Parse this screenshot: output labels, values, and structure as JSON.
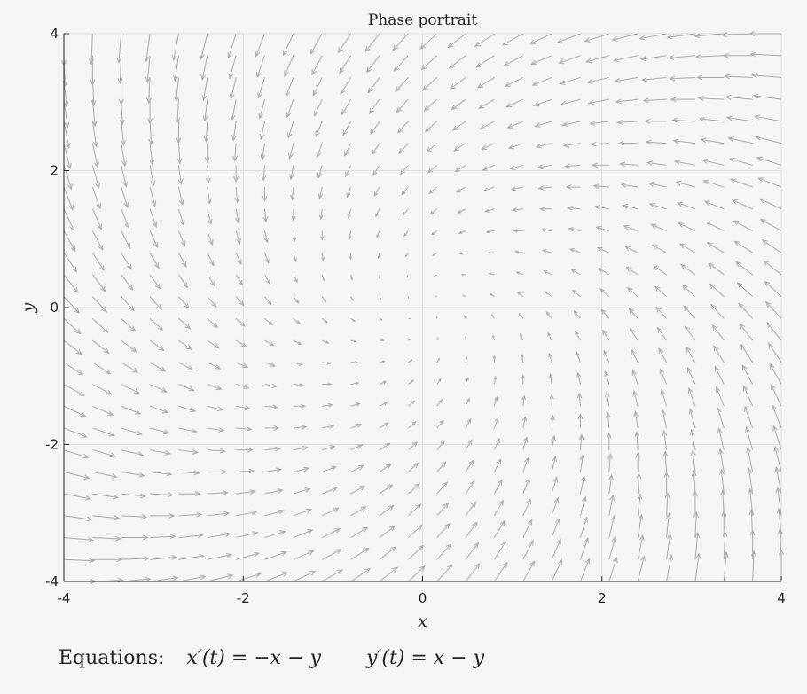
{
  "chart_data": {
    "type": "quiver",
    "title": "Phase portrait",
    "xlabel": "x",
    "ylabel": "y",
    "xlim": [
      -4,
      4
    ],
    "ylim": [
      -4,
      4
    ],
    "xticks": [
      -4,
      -2,
      0,
      2,
      4
    ],
    "yticks": [
      -4,
      -2,
      0,
      2,
      4
    ],
    "xtick_labels": [
      "-4",
      "-2",
      "0",
      "2",
      "4"
    ],
    "ytick_labels": [
      "-4",
      "-2",
      "0",
      "2",
      "4"
    ],
    "grid": true,
    "field": {
      "dx": "-x - y",
      "dy": "x - y",
      "x_start": -4,
      "x_step": 0.32,
      "x_count": 26,
      "y_start": -4,
      "y_step": 0.32,
      "y_count": 26
    },
    "colors": {
      "arrow": "#aaaaaa",
      "grid": "#dddddd",
      "axes": "#222222",
      "background": "#f5f5f5"
    }
  },
  "equations": {
    "label": "Equations:",
    "x_prime": "x′(t) = −x − y",
    "y_prime": "y′(t) = x − y"
  }
}
